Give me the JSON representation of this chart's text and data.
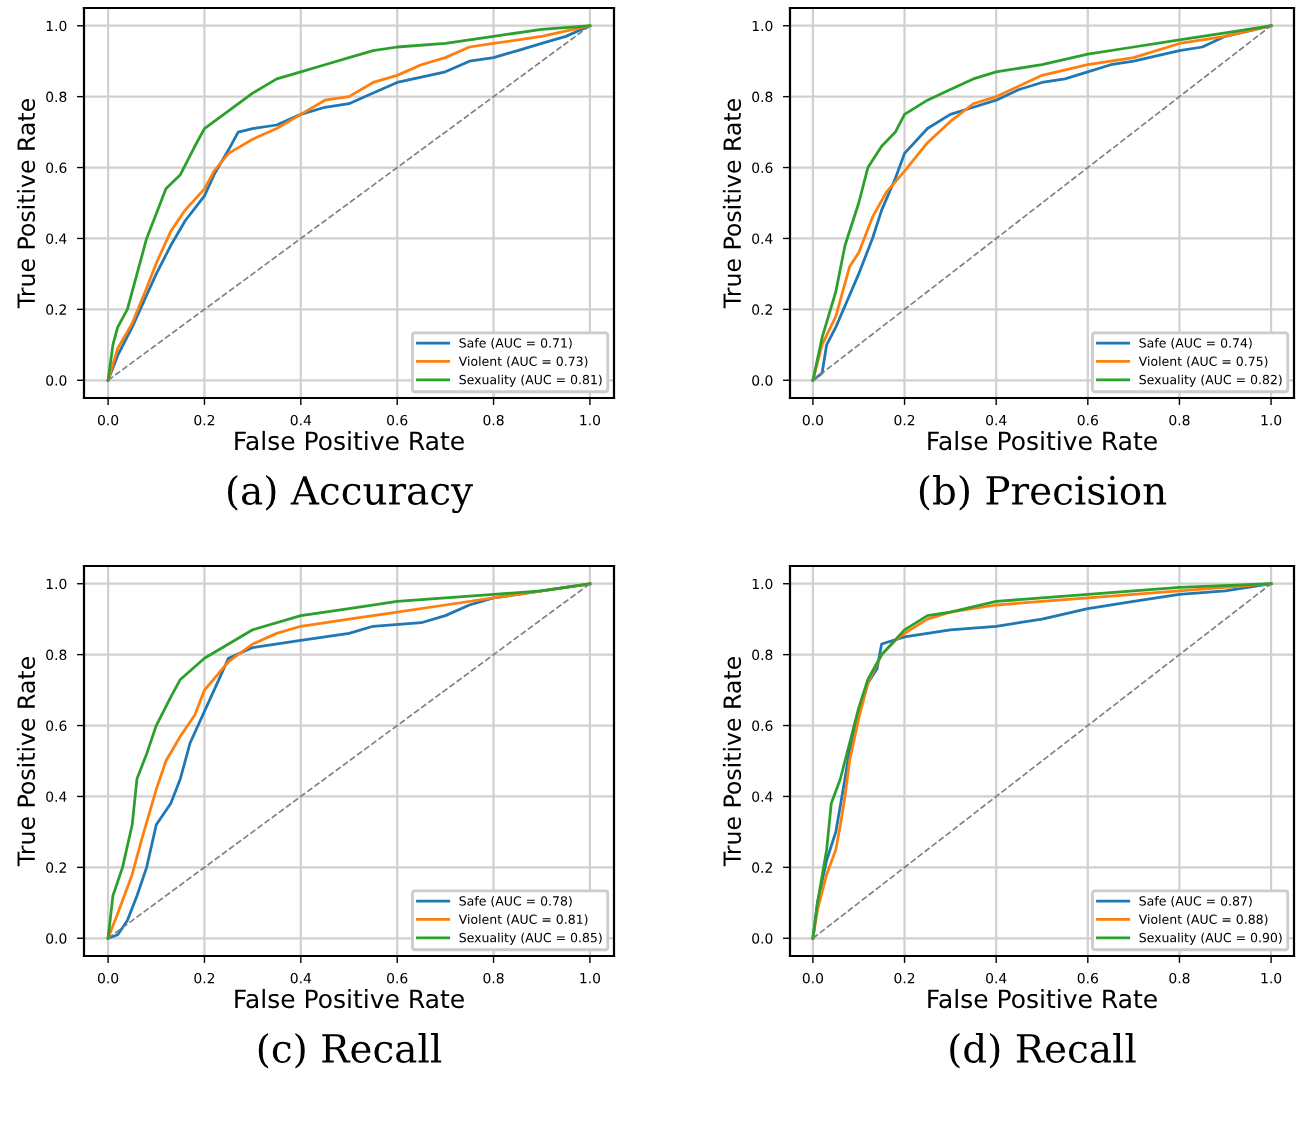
{
  "chart_data": [
    {
      "type": "line",
      "title": "(a) Accuracy",
      "xlabel": "False Positive Rate",
      "ylabel": "True Positive Rate",
      "xlim": [
        -0.05,
        1.05
      ],
      "ylim": [
        -0.05,
        1.05
      ],
      "xticks": [
        {
          "value": 0,
          "label": "0.0"
        },
        {
          "value": 0.2,
          "label": "0.2"
        },
        {
          "value": 0.4,
          "label": "0.4"
        },
        {
          "value": 0.6,
          "label": "0.6"
        },
        {
          "value": 0.8,
          "label": "0.8"
        },
        {
          "value": 1,
          "label": "1.0"
        }
      ],
      "yticks": [
        {
          "value": 0,
          "label": "0.0"
        },
        {
          "value": 0.2,
          "label": "0.2"
        },
        {
          "value": 0.4,
          "label": "0.4"
        },
        {
          "value": 0.6,
          "label": "0.6"
        },
        {
          "value": 0.8,
          "label": "0.8"
        },
        {
          "value": 1,
          "label": "1.0"
        }
      ],
      "grid": true,
      "legend": "lower right",
      "series": [
        {
          "name": "Safe (AUC = 0.71)",
          "color": "#1f77b4",
          "x": [
            0,
            0.02,
            0.05,
            0.08,
            0.1,
            0.13,
            0.16,
            0.2,
            0.22,
            0.25,
            0.27,
            0.3,
            0.35,
            0.4,
            0.45,
            0.5,
            0.55,
            0.6,
            0.7,
            0.75,
            0.8,
            0.85,
            0.9,
            0.95,
            1
          ],
          "values": [
            0,
            0.07,
            0.15,
            0.24,
            0.3,
            0.38,
            0.45,
            0.52,
            0.58,
            0.65,
            0.7,
            0.71,
            0.72,
            0.75,
            0.77,
            0.78,
            0.81,
            0.84,
            0.87,
            0.9,
            0.91,
            0.93,
            0.95,
            0.97,
            1
          ]
        },
        {
          "name": "Violent (AUC = 0.73)",
          "color": "#ff7f0e",
          "x": [
            0,
            0.02,
            0.05,
            0.08,
            0.1,
            0.13,
            0.16,
            0.2,
            0.22,
            0.25,
            0.3,
            0.35,
            0.4,
            0.45,
            0.5,
            0.55,
            0.6,
            0.65,
            0.7,
            0.75,
            0.8,
            0.9,
            1
          ],
          "values": [
            0,
            0.09,
            0.16,
            0.26,
            0.33,
            0.42,
            0.48,
            0.54,
            0.59,
            0.64,
            0.68,
            0.71,
            0.75,
            0.79,
            0.8,
            0.84,
            0.86,
            0.89,
            0.91,
            0.94,
            0.95,
            0.97,
            1
          ]
        },
        {
          "name": "Sexuality (AUC = 0.81)",
          "color": "#2ca02c",
          "x": [
            0,
            0.01,
            0.02,
            0.04,
            0.06,
            0.08,
            0.1,
            0.12,
            0.15,
            0.18,
            0.2,
            0.25,
            0.3,
            0.35,
            0.4,
            0.45,
            0.5,
            0.55,
            0.6,
            0.7,
            0.8,
            0.9,
            1
          ],
          "values": [
            0,
            0.1,
            0.15,
            0.2,
            0.3,
            0.4,
            0.47,
            0.54,
            0.58,
            0.66,
            0.71,
            0.76,
            0.81,
            0.85,
            0.87,
            0.89,
            0.91,
            0.93,
            0.94,
            0.95,
            0.97,
            0.99,
            1
          ]
        },
        {
          "color": "#808080",
          "line_style": "dashed",
          "x": [
            0,
            1
          ],
          "values": [
            0,
            1
          ]
        }
      ]
    },
    {
      "type": "line",
      "title": "(b) Precision",
      "xlabel": "False Positive Rate",
      "ylabel": "True Positive Rate",
      "xlim": [
        -0.05,
        1.05
      ],
      "ylim": [
        -0.05,
        1.05
      ],
      "xticks": [
        {
          "value": 0,
          "label": "0.0"
        },
        {
          "value": 0.2,
          "label": "0.2"
        },
        {
          "value": 0.4,
          "label": "0.4"
        },
        {
          "value": 0.6,
          "label": "0.6"
        },
        {
          "value": 0.8,
          "label": "0.8"
        },
        {
          "value": 1,
          "label": "1.0"
        }
      ],
      "yticks": [
        {
          "value": 0,
          "label": "0.0"
        },
        {
          "value": 0.2,
          "label": "0.2"
        },
        {
          "value": 0.4,
          "label": "0.4"
        },
        {
          "value": 0.6,
          "label": "0.6"
        },
        {
          "value": 0.8,
          "label": "0.8"
        },
        {
          "value": 1,
          "label": "1.0"
        }
      ],
      "grid": true,
      "legend": "lower right",
      "series": [
        {
          "name": "Safe (AUC = 0.74)",
          "color": "#1f77b4",
          "x": [
            0,
            0.02,
            0.03,
            0.05,
            0.08,
            0.1,
            0.13,
            0.15,
            0.18,
            0.2,
            0.25,
            0.3,
            0.35,
            0.4,
            0.45,
            0.5,
            0.55,
            0.6,
            0.65,
            0.7,
            0.8,
            0.85,
            0.9,
            1
          ],
          "values": [
            0,
            0.02,
            0.1,
            0.15,
            0.24,
            0.3,
            0.4,
            0.48,
            0.57,
            0.64,
            0.71,
            0.75,
            0.77,
            0.79,
            0.82,
            0.84,
            0.85,
            0.87,
            0.89,
            0.9,
            0.93,
            0.94,
            0.97,
            1
          ]
        },
        {
          "name": "Violent (AUC = 0.75)",
          "color": "#ff7f0e",
          "x": [
            0,
            0.02,
            0.05,
            0.08,
            0.1,
            0.13,
            0.16,
            0.2,
            0.25,
            0.3,
            0.35,
            0.4,
            0.45,
            0.5,
            0.6,
            0.7,
            0.8,
            0.9,
            1
          ],
          "values": [
            0,
            0.1,
            0.18,
            0.32,
            0.36,
            0.46,
            0.53,
            0.59,
            0.67,
            0.73,
            0.78,
            0.8,
            0.83,
            0.86,
            0.89,
            0.91,
            0.95,
            0.97,
            1
          ]
        },
        {
          "name": "Sexuality (AUC = 0.82)",
          "color": "#2ca02c",
          "x": [
            0,
            0.02,
            0.05,
            0.07,
            0.1,
            0.12,
            0.15,
            0.18,
            0.2,
            0.25,
            0.3,
            0.35,
            0.4,
            0.5,
            0.6,
            0.7,
            0.8,
            0.9,
            1
          ],
          "values": [
            0,
            0.12,
            0.25,
            0.38,
            0.5,
            0.6,
            0.66,
            0.7,
            0.75,
            0.79,
            0.82,
            0.85,
            0.87,
            0.89,
            0.92,
            0.94,
            0.96,
            0.98,
            1
          ]
        },
        {
          "color": "#808080",
          "line_style": "dashed",
          "x": [
            0,
            1
          ],
          "values": [
            0,
            1
          ]
        }
      ]
    },
    {
      "type": "line",
      "title": "(c) Recall",
      "xlabel": "False Positive Rate",
      "ylabel": "True Positive Rate",
      "xlim": [
        -0.05,
        1.05
      ],
      "ylim": [
        -0.05,
        1.05
      ],
      "xticks": [
        {
          "value": 0,
          "label": "0.0"
        },
        {
          "value": 0.2,
          "label": "0.2"
        },
        {
          "value": 0.4,
          "label": "0.4"
        },
        {
          "value": 0.6,
          "label": "0.6"
        },
        {
          "value": 0.8,
          "label": "0.8"
        },
        {
          "value": 1,
          "label": "1.0"
        }
      ],
      "yticks": [
        {
          "value": 0,
          "label": "0.0"
        },
        {
          "value": 0.2,
          "label": "0.2"
        },
        {
          "value": 0.4,
          "label": "0.4"
        },
        {
          "value": 0.6,
          "label": "0.6"
        },
        {
          "value": 0.8,
          "label": "0.8"
        },
        {
          "value": 1,
          "label": "1.0"
        }
      ],
      "grid": true,
      "legend": "lower right",
      "series": [
        {
          "name": "Safe (AUC = 0.78)",
          "color": "#1f77b4",
          "x": [
            0,
            0.02,
            0.04,
            0.06,
            0.08,
            0.1,
            0.13,
            0.15,
            0.17,
            0.2,
            0.22,
            0.25,
            0.3,
            0.4,
            0.5,
            0.55,
            0.65,
            0.7,
            0.75,
            0.8,
            0.9,
            1
          ],
          "values": [
            0,
            0.01,
            0.05,
            0.12,
            0.2,
            0.32,
            0.38,
            0.45,
            0.55,
            0.64,
            0.7,
            0.79,
            0.82,
            0.84,
            0.86,
            0.88,
            0.89,
            0.91,
            0.94,
            0.96,
            0.98,
            1
          ]
        },
        {
          "name": "Violent (AUC = 0.81)",
          "color": "#ff7f0e",
          "x": [
            0,
            0.02,
            0.05,
            0.07,
            0.1,
            0.12,
            0.15,
            0.18,
            0.2,
            0.25,
            0.3,
            0.35,
            0.4,
            0.5,
            0.6,
            0.7,
            0.8,
            0.9,
            1
          ],
          "values": [
            0,
            0.07,
            0.18,
            0.28,
            0.42,
            0.5,
            0.57,
            0.63,
            0.7,
            0.78,
            0.83,
            0.86,
            0.88,
            0.9,
            0.92,
            0.94,
            0.96,
            0.98,
            1
          ]
        },
        {
          "name": "Sexuality (AUC = 0.85)",
          "color": "#2ca02c",
          "x": [
            0,
            0.01,
            0.03,
            0.05,
            0.06,
            0.08,
            0.1,
            0.13,
            0.15,
            0.2,
            0.25,
            0.3,
            0.4,
            0.5,
            0.6,
            0.7,
            0.8,
            0.9,
            1
          ],
          "values": [
            0,
            0.12,
            0.2,
            0.32,
            0.45,
            0.52,
            0.6,
            0.68,
            0.73,
            0.79,
            0.83,
            0.87,
            0.91,
            0.93,
            0.95,
            0.96,
            0.97,
            0.98,
            1
          ]
        },
        {
          "color": "#808080",
          "line_style": "dashed",
          "x": [
            0,
            1
          ],
          "values": [
            0,
            1
          ]
        }
      ]
    },
    {
      "type": "line",
      "title": "(d) Recall",
      "xlabel": "False Positive Rate",
      "ylabel": "True Positive Rate",
      "xlim": [
        -0.05,
        1.05
      ],
      "ylim": [
        -0.05,
        1.05
      ],
      "xticks": [
        {
          "value": 0,
          "label": "0.0"
        },
        {
          "value": 0.2,
          "label": "0.2"
        },
        {
          "value": 0.4,
          "label": "0.4"
        },
        {
          "value": 0.6,
          "label": "0.6"
        },
        {
          "value": 0.8,
          "label": "0.8"
        },
        {
          "value": 1,
          "label": "1.0"
        }
      ],
      "yticks": [
        {
          "value": 0,
          "label": "0.0"
        },
        {
          "value": 0.2,
          "label": "0.2"
        },
        {
          "value": 0.4,
          "label": "0.4"
        },
        {
          "value": 0.6,
          "label": "0.6"
        },
        {
          "value": 0.8,
          "label": "0.8"
        },
        {
          "value": 1,
          "label": "1.0"
        }
      ],
      "grid": true,
      "legend": "lower right",
      "series": [
        {
          "name": "Safe (AUC = 0.87)",
          "color": "#1f77b4",
          "x": [
            0,
            0.01,
            0.03,
            0.05,
            0.07,
            0.08,
            0.1,
            0.12,
            0.14,
            0.15,
            0.2,
            0.3,
            0.4,
            0.5,
            0.6,
            0.7,
            0.8,
            0.9,
            1
          ],
          "values": [
            0,
            0.1,
            0.22,
            0.3,
            0.45,
            0.53,
            0.63,
            0.72,
            0.76,
            0.83,
            0.85,
            0.87,
            0.88,
            0.9,
            0.93,
            0.95,
            0.97,
            0.98,
            1
          ]
        },
        {
          "name": "Violent (AUC = 0.88)",
          "color": "#ff7f0e",
          "x": [
            0,
            0.01,
            0.03,
            0.05,
            0.06,
            0.07,
            0.08,
            0.1,
            0.12,
            0.15,
            0.18,
            0.2,
            0.25,
            0.3,
            0.4,
            0.5,
            0.6,
            0.7,
            0.8,
            0.9,
            1
          ],
          "values": [
            0,
            0.08,
            0.18,
            0.25,
            0.32,
            0.4,
            0.5,
            0.62,
            0.72,
            0.8,
            0.84,
            0.86,
            0.9,
            0.92,
            0.94,
            0.95,
            0.96,
            0.97,
            0.98,
            0.99,
            1
          ]
        },
        {
          "name": "Sexuality (AUC = 0.90)",
          "color": "#2ca02c",
          "x": [
            0,
            0.01,
            0.03,
            0.04,
            0.06,
            0.08,
            0.1,
            0.12,
            0.15,
            0.2,
            0.25,
            0.3,
            0.4,
            0.5,
            0.6,
            0.7,
            0.8,
            1
          ],
          "values": [
            0,
            0.1,
            0.25,
            0.38,
            0.45,
            0.55,
            0.65,
            0.73,
            0.8,
            0.87,
            0.91,
            0.92,
            0.95,
            0.96,
            0.97,
            0.98,
            0.99,
            1
          ]
        },
        {
          "color": "#808080",
          "line_style": "dashed",
          "x": [
            0,
            1
          ],
          "values": [
            0,
            1
          ]
        }
      ]
    }
  ]
}
